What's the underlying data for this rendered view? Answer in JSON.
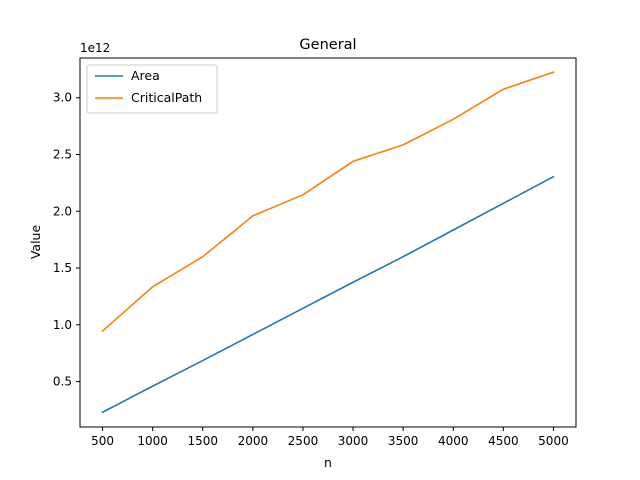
{
  "chart_data": {
    "type": "line",
    "title": "General",
    "xlabel": "n",
    "ylabel": "Value",
    "y_offset_label": "1e12",
    "x": [
      500,
      1000,
      1500,
      2000,
      2500,
      3000,
      3500,
      4000,
      4500,
      5000
    ],
    "x_ticks": [
      500,
      1000,
      1500,
      2000,
      2500,
      3000,
      3500,
      4000,
      4500,
      5000
    ],
    "y_ticks": [
      0.5,
      1.0,
      1.5,
      2.0,
      2.5,
      3.0
    ],
    "y_tick_labels": [
      "0.5",
      "1.0",
      "1.5",
      "2.0",
      "2.5",
      "3.0"
    ],
    "xlim": [
      275,
      5225
    ],
    "ylim": [
      0.1,
      3.35
    ],
    "y_unit_multiplier": 1000000000000.0,
    "grid": false,
    "legend_position": "top-left",
    "series": [
      {
        "name": "Area",
        "color": "#1f77b4",
        "values": [
          0.23,
          0.46,
          0.685,
          0.915,
          1.145,
          1.375,
          1.6,
          1.835,
          2.07,
          2.305
        ]
      },
      {
        "name": "CriticalPath",
        "color": "#ff7f0e",
        "values": [
          0.945,
          1.335,
          1.6,
          1.96,
          2.145,
          2.44,
          2.585,
          2.81,
          3.075,
          3.225
        ]
      }
    ]
  }
}
